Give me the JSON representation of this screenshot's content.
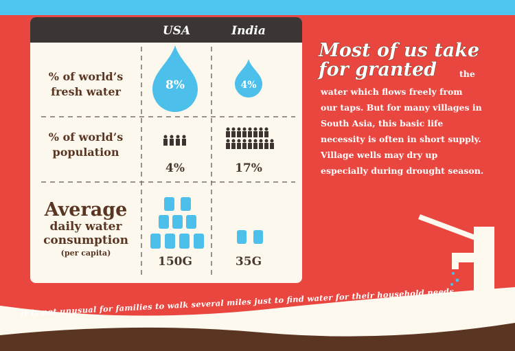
{
  "table": {
    "columns": [
      "USA",
      "India"
    ],
    "rows": [
      {
        "label": [
          "% of world’s",
          "fresh water"
        ],
        "values": [
          "8%",
          "4%"
        ]
      },
      {
        "label": [
          "% of world’s",
          "population"
        ],
        "values": [
          "4%",
          "17%"
        ]
      },
      {
        "label": [
          "Average",
          "daily water",
          "consumption",
          "(per capita)"
        ],
        "values": [
          "150G",
          "35G"
        ]
      }
    ]
  },
  "aside": {
    "heading": [
      "Most of us take",
      "for granted"
    ],
    "lead": "the",
    "body": [
      "water which flows freely from",
      "our taps. But for many villages in",
      "South Asia, this basic life",
      "necessity is often in short supply.",
      "Village wells may dry up",
      "especially during drought season."
    ]
  },
  "footer": "It is not unusual for families to walk several miles just to find water for their household needs."
}
